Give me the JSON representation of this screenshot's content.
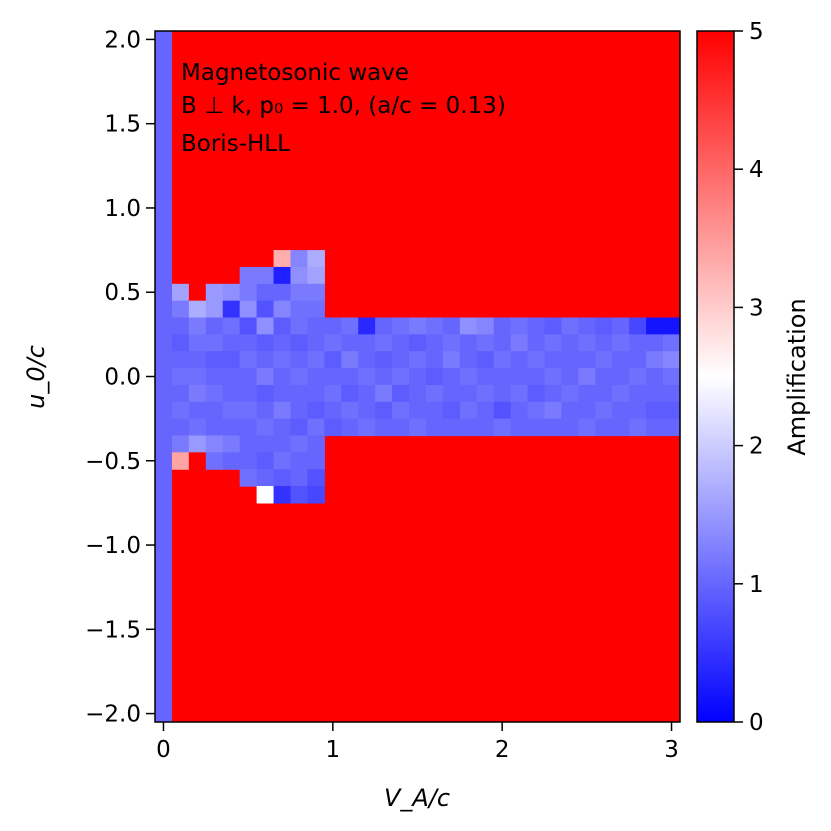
{
  "chart_data": {
    "type": "heatmap",
    "title": "",
    "annotation_lines": [
      "Magnetosonic wave",
      "B ⊥ k, p₀ = 1.0, (a/c = 0.13)",
      "Boris-HLL"
    ],
    "xlabel": "V_A/c",
    "ylabel": "u_0/c",
    "xlim": [
      -0.05,
      3.05
    ],
    "ylim": [
      -2.05,
      2.05
    ],
    "x_ticks": [
      0,
      1,
      2,
      3
    ],
    "x_tick_labels": [
      "0",
      "1",
      "2",
      "3"
    ],
    "y_ticks": [
      2.0,
      1.5,
      1.0,
      0.5,
      0.0,
      -0.5,
      -1.0,
      -1.5,
      -2.0
    ],
    "y_tick_labels": [
      "2.0",
      "1.5",
      "1.0",
      "0.5",
      "0.0",
      "−0.5",
      "−1.0",
      "−1.5",
      "−2.0"
    ],
    "colorbar": {
      "label": "Amplification",
      "range": [
        0,
        5
      ],
      "ticks": [
        0,
        1,
        2,
        3,
        4,
        5
      ],
      "tick_labels": [
        "0",
        "1",
        "2",
        "3",
        "4",
        "5"
      ],
      "colormap": "bwr",
      "low_color": "#0000ff",
      "mid_color": "#ffffff",
      "high_color": "#ff0000"
    },
    "grid": false,
    "cell_width": 0.1,
    "cell_height": 0.1,
    "default_value": 5.0,
    "regions": [
      {
        "x_range": [
          -0.05,
          0.05
        ],
        "y_range": [
          -2.05,
          2.05
        ],
        "value": 1.0
      }
    ],
    "cells": [
      [
        0.1,
        0.5,
        1.6
      ],
      [
        0.1,
        0.4,
        1.2
      ],
      [
        0.1,
        0.3,
        1.0
      ],
      [
        0.1,
        0.2,
        0.9
      ],
      [
        0.1,
        0.1,
        1.0
      ],
      [
        0.1,
        0.0,
        1.1
      ],
      [
        0.1,
        -0.1,
        1.0
      ],
      [
        0.1,
        -0.2,
        1.1
      ],
      [
        0.1,
        -0.3,
        1.0
      ],
      [
        0.1,
        -0.4,
        1.2
      ],
      [
        0.1,
        -0.5,
        3.4
      ],
      [
        0.2,
        0.5,
        5.0
      ],
      [
        0.2,
        0.4,
        1.7
      ],
      [
        0.2,
        0.3,
        1.2
      ],
      [
        0.2,
        0.2,
        1.1
      ],
      [
        0.2,
        0.1,
        1.0
      ],
      [
        0.2,
        0.0,
        1.1
      ],
      [
        0.2,
        -0.1,
        1.2
      ],
      [
        0.2,
        -0.2,
        1.0
      ],
      [
        0.2,
        -0.3,
        1.1
      ],
      [
        0.2,
        -0.4,
        1.5
      ],
      [
        0.2,
        -0.5,
        5.0
      ],
      [
        0.3,
        0.5,
        1.5
      ],
      [
        0.3,
        0.4,
        1.5
      ],
      [
        0.3,
        0.3,
        1.0
      ],
      [
        0.3,
        0.2,
        1.1
      ],
      [
        0.3,
        0.1,
        0.9
      ],
      [
        0.3,
        0.0,
        1.0
      ],
      [
        0.3,
        -0.1,
        1.1
      ],
      [
        0.3,
        -0.2,
        1.0
      ],
      [
        0.3,
        -0.3,
        1.0
      ],
      [
        0.3,
        -0.4,
        1.3
      ],
      [
        0.3,
        -0.5,
        1.1
      ],
      [
        0.4,
        0.5,
        1.4
      ],
      [
        0.4,
        0.4,
        0.5
      ],
      [
        0.4,
        0.3,
        1.1
      ],
      [
        0.4,
        0.2,
        1.0
      ],
      [
        0.4,
        0.1,
        0.9
      ],
      [
        0.4,
        0.0,
        1.0
      ],
      [
        0.4,
        -0.1,
        1.0
      ],
      [
        0.4,
        -0.2,
        1.1
      ],
      [
        0.4,
        -0.3,
        1.0
      ],
      [
        0.4,
        -0.4,
        1.2
      ],
      [
        0.4,
        -0.5,
        1.0
      ],
      [
        0.5,
        0.6,
        1.2
      ],
      [
        0.5,
        0.5,
        1.2
      ],
      [
        0.5,
        0.4,
        1.4
      ],
      [
        0.5,
        0.3,
        0.8
      ],
      [
        0.5,
        0.2,
        1.0
      ],
      [
        0.5,
        0.1,
        1.1
      ],
      [
        0.5,
        0.0,
        1.0
      ],
      [
        0.5,
        -0.1,
        1.0
      ],
      [
        0.5,
        -0.2,
        1.1
      ],
      [
        0.5,
        -0.3,
        1.0
      ],
      [
        0.5,
        -0.4,
        1.0
      ],
      [
        0.5,
        -0.5,
        1.0
      ],
      [
        0.5,
        -0.6,
        1.1
      ],
      [
        0.6,
        0.6,
        1.2
      ],
      [
        0.6,
        0.5,
        1.0
      ],
      [
        0.6,
        0.4,
        0.8
      ],
      [
        0.6,
        0.3,
        1.4
      ],
      [
        0.6,
        0.2,
        0.9
      ],
      [
        0.6,
        0.1,
        1.0
      ],
      [
        0.6,
        0.0,
        1.2
      ],
      [
        0.6,
        -0.1,
        0.9
      ],
      [
        0.6,
        -0.2,
        1.0
      ],
      [
        0.6,
        -0.3,
        1.1
      ],
      [
        0.6,
        -0.4,
        1.0
      ],
      [
        0.6,
        -0.5,
        0.9
      ],
      [
        0.6,
        -0.6,
        1.0
      ],
      [
        0.6,
        -0.7,
        2.5
      ],
      [
        0.7,
        0.7,
        3.3
      ],
      [
        0.7,
        0.6,
        0.3
      ],
      [
        0.7,
        0.5,
        1.0
      ],
      [
        0.7,
        0.4,
        1.3
      ],
      [
        0.7,
        0.3,
        0.9
      ],
      [
        0.7,
        0.2,
        1.0
      ],
      [
        0.7,
        0.1,
        1.1
      ],
      [
        0.7,
        0.0,
        1.0
      ],
      [
        0.7,
        -0.1,
        1.0
      ],
      [
        0.7,
        -0.2,
        1.2
      ],
      [
        0.7,
        -0.3,
        1.0
      ],
      [
        0.7,
        -0.4,
        1.0
      ],
      [
        0.7,
        -0.5,
        1.1
      ],
      [
        0.7,
        -0.6,
        0.9
      ],
      [
        0.7,
        -0.7,
        0.5
      ],
      [
        0.8,
        0.7,
        1.3
      ],
      [
        0.8,
        0.6,
        1.4
      ],
      [
        0.8,
        0.5,
        1.2
      ],
      [
        0.8,
        0.4,
        1.1
      ],
      [
        0.8,
        0.3,
        1.1
      ],
      [
        0.8,
        0.2,
        0.9
      ],
      [
        0.8,
        0.1,
        1.0
      ],
      [
        0.8,
        0.0,
        1.1
      ],
      [
        0.8,
        -0.1,
        1.0
      ],
      [
        0.8,
        -0.2,
        1.0
      ],
      [
        0.8,
        -0.3,
        0.9
      ],
      [
        0.8,
        -0.4,
        1.1
      ],
      [
        0.8,
        -0.5,
        1.0
      ],
      [
        0.8,
        -0.6,
        1.0
      ],
      [
        0.8,
        -0.7,
        0.8
      ],
      [
        0.9,
        0.7,
        1.7
      ],
      [
        0.9,
        0.6,
        1.6
      ],
      [
        0.9,
        0.5,
        1.2
      ],
      [
        0.9,
        0.4,
        1.1
      ],
      [
        0.9,
        0.3,
        1.0
      ],
      [
        0.9,
        0.2,
        1.0
      ],
      [
        0.9,
        0.1,
        1.1
      ],
      [
        0.9,
        0.0,
        1.0
      ],
      [
        0.9,
        -0.1,
        1.0
      ],
      [
        0.9,
        -0.2,
        0.9
      ],
      [
        0.9,
        -0.3,
        1.1
      ],
      [
        0.9,
        -0.4,
        1.0
      ],
      [
        0.9,
        -0.5,
        1.0
      ],
      [
        0.9,
        -0.6,
        0.8
      ],
      [
        0.9,
        -0.7,
        0.7
      ],
      [
        1.0,
        0.3,
        1.0
      ],
      [
        1.0,
        0.2,
        1.1
      ],
      [
        1.0,
        0.1,
        0.9
      ],
      [
        1.0,
        0.0,
        1.0
      ],
      [
        1.0,
        -0.1,
        1.1
      ],
      [
        1.0,
        -0.2,
        1.0
      ],
      [
        1.0,
        -0.3,
        0.9
      ],
      [
        1.1,
        0.3,
        1.1
      ],
      [
        1.1,
        0.2,
        1.0
      ],
      [
        1.1,
        0.1,
        1.2
      ],
      [
        1.1,
        0.0,
        1.0
      ],
      [
        1.1,
        -0.1,
        0.9
      ],
      [
        1.1,
        -0.2,
        1.1
      ],
      [
        1.1,
        -0.3,
        1.0
      ],
      [
        1.2,
        0.3,
        0.4
      ],
      [
        1.2,
        0.2,
        1.0
      ],
      [
        1.2,
        0.1,
        1.0
      ],
      [
        1.2,
        0.0,
        1.1
      ],
      [
        1.2,
        -0.1,
        1.0
      ],
      [
        1.2,
        -0.2,
        1.0
      ],
      [
        1.2,
        -0.3,
        1.1
      ],
      [
        1.3,
        0.3,
        1.0
      ],
      [
        1.3,
        0.2,
        1.1
      ],
      [
        1.3,
        0.1,
        0.9
      ],
      [
        1.3,
        0.0,
        1.0
      ],
      [
        1.3,
        -0.1,
        1.2
      ],
      [
        1.3,
        -0.2,
        0.9
      ],
      [
        1.3,
        -0.3,
        1.0
      ],
      [
        1.4,
        0.3,
        1.1
      ],
      [
        1.4,
        0.2,
        1.0
      ],
      [
        1.4,
        0.1,
        1.0
      ],
      [
        1.4,
        0.0,
        1.1
      ],
      [
        1.4,
        -0.1,
        0.9
      ],
      [
        1.4,
        -0.2,
        1.1
      ],
      [
        1.4,
        -0.3,
        1.0
      ],
      [
        1.5,
        0.3,
        1.2
      ],
      [
        1.5,
        0.2,
        0.9
      ],
      [
        1.5,
        0.1,
        1.1
      ],
      [
        1.5,
        0.0,
        1.0
      ],
      [
        1.5,
        -0.1,
        1.0
      ],
      [
        1.5,
        -0.2,
        1.0
      ],
      [
        1.5,
        -0.3,
        1.1
      ],
      [
        1.6,
        0.3,
        1.1
      ],
      [
        1.6,
        0.2,
        1.0
      ],
      [
        1.6,
        0.1,
        1.0
      ],
      [
        1.6,
        0.0,
        0.9
      ],
      [
        1.6,
        -0.1,
        1.1
      ],
      [
        1.6,
        -0.2,
        1.0
      ],
      [
        1.6,
        -0.3,
        1.0
      ],
      [
        1.7,
        0.3,
        1.0
      ],
      [
        1.7,
        0.2,
        1.1
      ],
      [
        1.7,
        0.1,
        1.2
      ],
      [
        1.7,
        0.0,
        1.0
      ],
      [
        1.7,
        -0.1,
        1.0
      ],
      [
        1.7,
        -0.2,
        0.9
      ],
      [
        1.7,
        -0.3,
        1.0
      ],
      [
        1.8,
        0.3,
        1.4
      ],
      [
        1.8,
        0.2,
        1.0
      ],
      [
        1.8,
        0.1,
        1.0
      ],
      [
        1.8,
        0.0,
        1.1
      ],
      [
        1.8,
        -0.1,
        1.0
      ],
      [
        1.8,
        -0.2,
        1.1
      ],
      [
        1.8,
        -0.3,
        1.0
      ],
      [
        1.9,
        0.3,
        1.3
      ],
      [
        1.9,
        0.2,
        1.1
      ],
      [
        1.9,
        0.1,
        0.9
      ],
      [
        1.9,
        0.0,
        1.0
      ],
      [
        1.9,
        -0.1,
        1.1
      ],
      [
        1.9,
        -0.2,
        1.0
      ],
      [
        1.9,
        -0.3,
        1.0
      ],
      [
        2.0,
        0.3,
        1.0
      ],
      [
        2.0,
        0.2,
        1.0
      ],
      [
        2.0,
        0.1,
        1.1
      ],
      [
        2.0,
        0.0,
        1.0
      ],
      [
        2.0,
        -0.1,
        1.0
      ],
      [
        2.0,
        -0.2,
        0.8
      ],
      [
        2.0,
        -0.3,
        1.1
      ],
      [
        2.1,
        0.3,
        1.1
      ],
      [
        2.1,
        0.2,
        1.2
      ],
      [
        2.1,
        0.1,
        1.0
      ],
      [
        2.1,
        0.0,
        1.0
      ],
      [
        2.1,
        -0.1,
        1.1
      ],
      [
        2.1,
        -0.2,
        1.0
      ],
      [
        2.1,
        -0.3,
        1.0
      ],
      [
        2.2,
        0.3,
        1.0
      ],
      [
        2.2,
        0.2,
        1.0
      ],
      [
        2.2,
        0.1,
        1.1
      ],
      [
        2.2,
        0.0,
        1.0
      ],
      [
        2.2,
        -0.1,
        0.9
      ],
      [
        2.2,
        -0.2,
        1.1
      ],
      [
        2.2,
        -0.3,
        1.0
      ],
      [
        2.3,
        0.3,
        0.9
      ],
      [
        2.3,
        0.2,
        1.1
      ],
      [
        2.3,
        0.1,
        1.0
      ],
      [
        2.3,
        0.0,
        1.1
      ],
      [
        2.3,
        -0.1,
        1.0
      ],
      [
        2.3,
        -0.2,
        1.2
      ],
      [
        2.3,
        -0.3,
        1.0
      ],
      [
        2.4,
        0.3,
        1.1
      ],
      [
        2.4,
        0.2,
        1.0
      ],
      [
        2.4,
        0.1,
        1.0
      ],
      [
        2.4,
        0.0,
        1.0
      ],
      [
        2.4,
        -0.1,
        1.1
      ],
      [
        2.4,
        -0.2,
        1.0
      ],
      [
        2.4,
        -0.3,
        1.0
      ],
      [
        2.5,
        0.3,
        1.0
      ],
      [
        2.5,
        0.2,
        1.1
      ],
      [
        2.5,
        0.1,
        1.0
      ],
      [
        2.5,
        0.0,
        1.2
      ],
      [
        2.5,
        -0.1,
        1.0
      ],
      [
        2.5,
        -0.2,
        1.0
      ],
      [
        2.5,
        -0.3,
        1.1
      ],
      [
        2.6,
        0.3,
        0.9
      ],
      [
        2.6,
        0.2,
        1.0
      ],
      [
        2.6,
        0.1,
        1.1
      ],
      [
        2.6,
        0.0,
        1.0
      ],
      [
        2.6,
        -0.1,
        1.0
      ],
      [
        2.6,
        -0.2,
        1.1
      ],
      [
        2.6,
        -0.3,
        1.0
      ],
      [
        2.7,
        0.3,
        1.0
      ],
      [
        2.7,
        0.2,
        1.1
      ],
      [
        2.7,
        0.1,
        1.0
      ],
      [
        2.7,
        0.0,
        1.0
      ],
      [
        2.7,
        -0.1,
        1.1
      ],
      [
        2.7,
        -0.2,
        1.0
      ],
      [
        2.7,
        -0.3,
        1.0
      ],
      [
        2.8,
        0.3,
        0.7
      ],
      [
        2.8,
        0.2,
        1.0
      ],
      [
        2.8,
        0.1,
        1.0
      ],
      [
        2.8,
        0.0,
        1.1
      ],
      [
        2.8,
        -0.1,
        1.0
      ],
      [
        2.8,
        -0.2,
        1.0
      ],
      [
        2.8,
        -0.3,
        1.1
      ],
      [
        2.9,
        0.3,
        0.2
      ],
      [
        2.9,
        0.2,
        1.0
      ],
      [
        2.9,
        0.1,
        1.2
      ],
      [
        2.9,
        0.0,
        1.0
      ],
      [
        2.9,
        -0.1,
        1.0
      ],
      [
        2.9,
        -0.2,
        0.9
      ],
      [
        2.9,
        -0.3,
        1.0
      ],
      [
        3.0,
        0.3,
        0.2
      ],
      [
        3.0,
        0.2,
        1.1
      ],
      [
        3.0,
        0.1,
        1.3
      ],
      [
        3.0,
        0.0,
        1.1
      ],
      [
        3.0,
        -0.1,
        1.0
      ],
      [
        3.0,
        -0.2,
        0.9
      ],
      [
        3.0,
        -0.3,
        1.0
      ]
    ]
  }
}
